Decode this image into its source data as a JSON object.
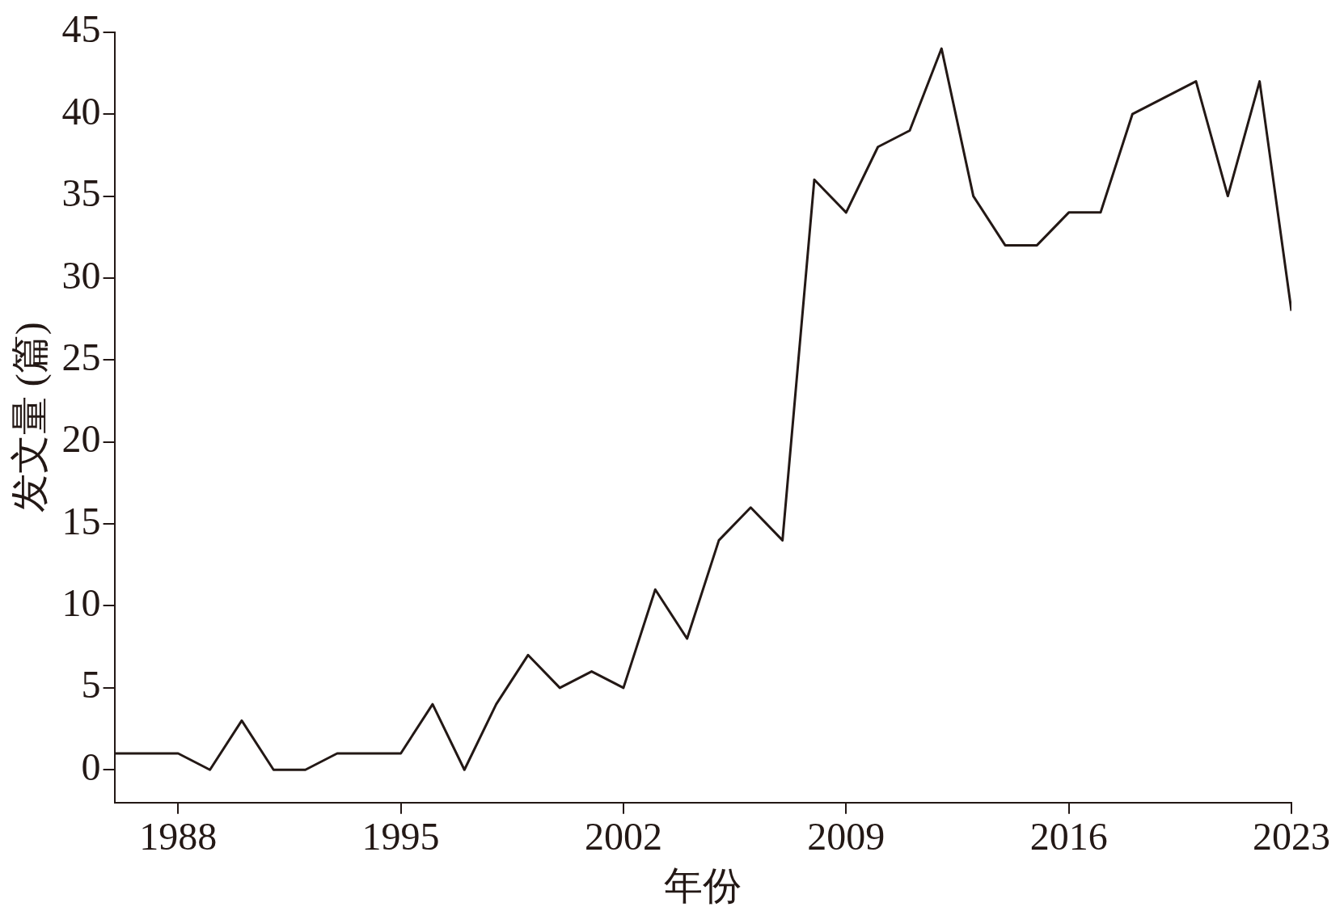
{
  "chart_data": {
    "type": "line",
    "xlabel": "年份",
    "ylabel": "发文量 (篇)",
    "x": [
      1986,
      1987,
      1988,
      1989,
      1990,
      1991,
      1992,
      1993,
      1994,
      1995,
      1996,
      1997,
      1998,
      1999,
      2000,
      2001,
      2002,
      2003,
      2004,
      2005,
      2006,
      2007,
      2008,
      2009,
      2010,
      2011,
      2012,
      2013,
      2014,
      2015,
      2016,
      2017,
      2018,
      2019,
      2020,
      2021,
      2022,
      2023
    ],
    "series": [
      {
        "color": "#231815",
        "values": [
          1,
          1,
          1,
          0,
          3,
          0,
          0,
          1,
          1,
          1,
          4,
          0,
          4,
          7,
          5,
          6,
          5,
          11,
          8,
          14,
          16,
          14,
          36,
          34,
          38,
          39,
          44,
          35,
          32,
          32,
          34,
          34,
          40,
          41,
          42,
          35,
          42,
          28
        ]
      }
    ],
    "xlim": [
      1986,
      2023
    ],
    "xticks": [
      1988,
      1995,
      2002,
      2009,
      2016,
      2023
    ],
    "ylim": [
      -2,
      45
    ],
    "yticks": [
      0,
      5,
      10,
      15,
      20,
      25,
      30,
      35,
      40,
      45
    ],
    "grid": false,
    "legend": false,
    "marker": "none",
    "line_style": "solid"
  }
}
